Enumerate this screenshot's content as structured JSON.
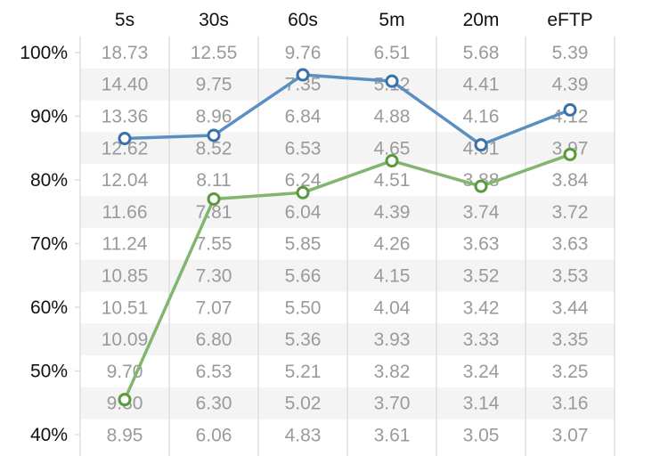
{
  "chart_data": {
    "type": "line",
    "columns": [
      "5s",
      "30s",
      "60s",
      "5m",
      "20m",
      "eFTP"
    ],
    "ylim": [
      40,
      100
    ],
    "yticks": [
      {
        "value": 100,
        "label": "100%"
      },
      {
        "value": 90,
        "label": "90%"
      },
      {
        "value": 80,
        "label": "80%"
      },
      {
        "value": 70,
        "label": "70%"
      },
      {
        "value": 60,
        "label": "60%"
      },
      {
        "value": 50,
        "label": "50%"
      },
      {
        "value": 40,
        "label": "40%"
      }
    ],
    "table": [
      [
        "18.73",
        "12.55",
        "9.76",
        "6.51",
        "5.68",
        "5.39"
      ],
      [
        "14.40",
        "9.75",
        "7.35",
        "5.12",
        "4.41",
        "4.39"
      ],
      [
        "13.36",
        "8.96",
        "6.84",
        "4.88",
        "4.16",
        "4.12"
      ],
      [
        "12.62",
        "8.52",
        "6.53",
        "4.65",
        "4.01",
        "3.97"
      ],
      [
        "12.04",
        "8.11",
        "6.24",
        "4.51",
        "3.88",
        "3.84"
      ],
      [
        "11.66",
        "7.81",
        "6.04",
        "4.39",
        "3.74",
        "3.72"
      ],
      [
        "11.24",
        "7.55",
        "5.85",
        "4.26",
        "3.63",
        "3.63"
      ],
      [
        "10.85",
        "7.30",
        "5.66",
        "4.15",
        "3.52",
        "3.53"
      ],
      [
        "10.51",
        "7.07",
        "5.50",
        "4.04",
        "3.42",
        "3.44"
      ],
      [
        "10.09",
        "6.80",
        "5.36",
        "3.93",
        "3.33",
        "3.35"
      ],
      [
        "9.70",
        "6.53",
        "5.21",
        "3.82",
        "3.24",
        "3.25"
      ],
      [
        "9.30",
        "6.30",
        "5.02",
        "3.70",
        "3.14",
        "3.16"
      ],
      [
        "8.95",
        "6.06",
        "4.83",
        "3.61",
        "3.05",
        "3.07"
      ]
    ],
    "series": [
      {
        "color": "#5b8fc0",
        "marker_color": "#3a72a8",
        "values": [
          86.5,
          87.0,
          96.5,
          95.5,
          85.5,
          91.0
        ]
      },
      {
        "color": "#82b56e",
        "marker_color": "#5a9a3c",
        "values": [
          45.5,
          77.0,
          78.0,
          83.0,
          79.0,
          84.0
        ]
      }
    ],
    "grid": true
  }
}
